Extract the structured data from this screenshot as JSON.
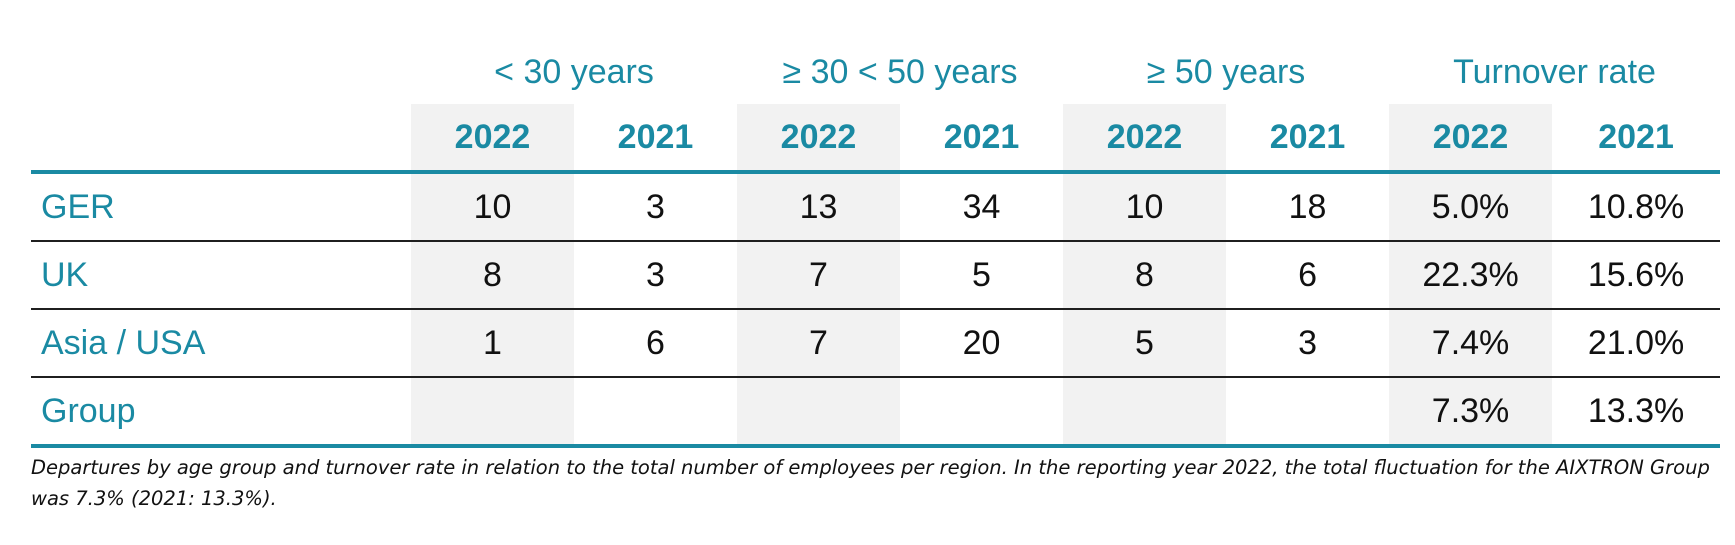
{
  "table": {
    "groups": [
      "< 30 years",
      "≥ 30 < 50 years",
      "≥ 50 years",
      "Turnover rate"
    ],
    "years": [
      "2022",
      "2021",
      "2022",
      "2021",
      "2022",
      "2021",
      "2022",
      "2021"
    ],
    "rows": [
      {
        "region": "GER",
        "values": [
          "10",
          "3",
          "13",
          "34",
          "10",
          "18",
          "5.0%",
          "10.8%"
        ]
      },
      {
        "region": "UK",
        "values": [
          "8",
          "3",
          "7",
          "5",
          "8",
          "6",
          "22.3%",
          "15.6%"
        ]
      },
      {
        "region": "Asia / USA",
        "values": [
          "1",
          "6",
          "7",
          "20",
          "5",
          "3",
          "7.4%",
          "21.0%"
        ]
      },
      {
        "region": "Group",
        "values": [
          "",
          "",
          "",
          "",
          "",
          "",
          "7.3%",
          "13.3%"
        ]
      }
    ]
  },
  "note": "Departures by age group and turnover rate in relation to the total number of employees per region. In the reporting year 2022, the total fluctuation for the AIXTRON Group was 7.3% (2021:  13.3%).",
  "colors": {
    "accent": "#1a8aa3",
    "shade": "#f2f2f2"
  }
}
